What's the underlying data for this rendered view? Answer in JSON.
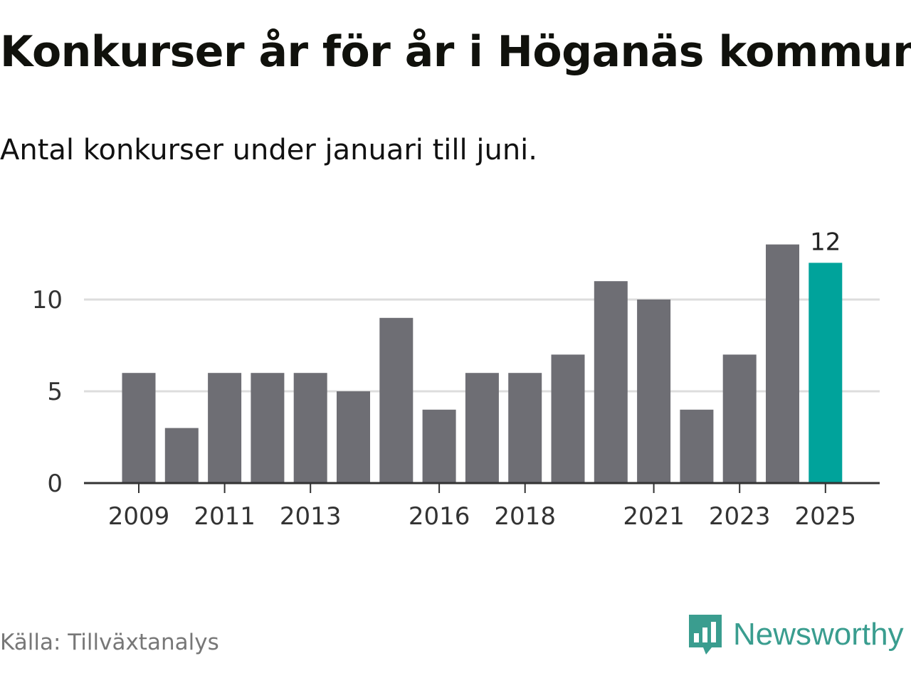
{
  "title": "Konkurser år för år i Höganäs kommun",
  "subtitle": "Antal konkurser under januari till juni.",
  "source": "Källa: Tillväxtanalys",
  "brand": {
    "name": "Newsworthy",
    "icon": "newsworthy-logo-icon",
    "color": "#3a9d8f"
  },
  "colors": {
    "bar": "#6e6e74",
    "highlight": "#00a39b",
    "grid": "#dddddd",
    "axis": "#333333"
  },
  "chart_data": {
    "type": "bar",
    "categories": [
      "2009",
      "2010",
      "2011",
      "2012",
      "2013",
      "2014",
      "2015",
      "2016",
      "2017",
      "2018",
      "2019",
      "2020",
      "2021",
      "2022",
      "2023",
      "2024",
      "2025"
    ],
    "values": [
      6,
      3,
      6,
      6,
      6,
      5,
      9,
      4,
      6,
      6,
      7,
      11,
      10,
      4,
      7,
      13,
      12
    ],
    "x_tick_labels": [
      "2009",
      "2011",
      "2013",
      "2016",
      "2018",
      "2021",
      "2023",
      "2025"
    ],
    "y_ticks": [
      0,
      5,
      10
    ],
    "ylim": [
      0,
      13
    ],
    "highlight": {
      "category": "2025",
      "label": "12"
    },
    "grid": true,
    "xlabel": "",
    "ylabel": ""
  }
}
